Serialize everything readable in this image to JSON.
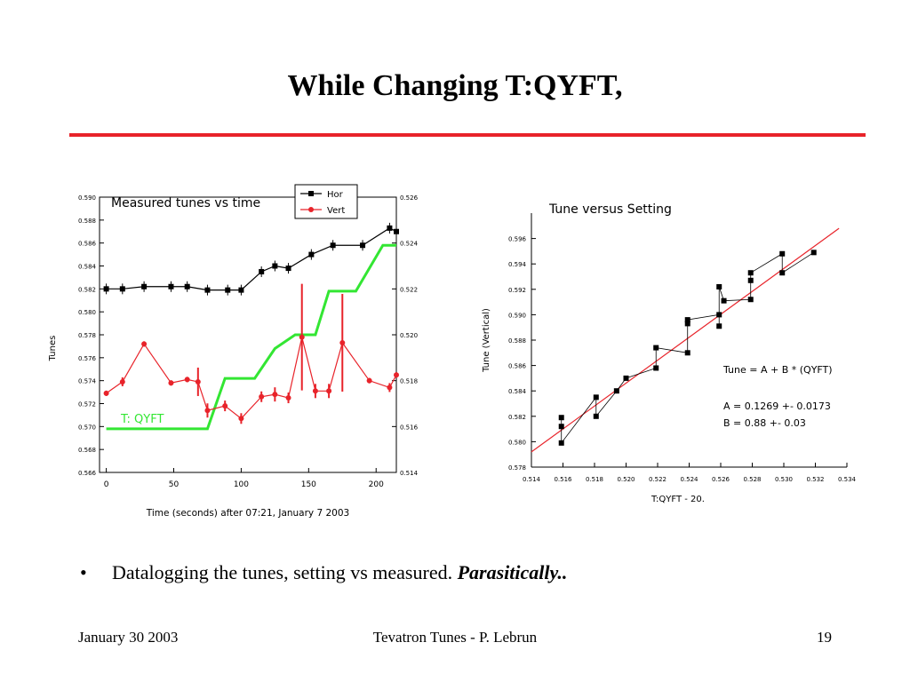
{
  "slide": {
    "title": "While Changing T:QYFT,",
    "accent_color": "#e8232a",
    "bullet": {
      "symbol": "•",
      "text": "Datalogging the tunes, setting vs measured. ",
      "emphasis": "Parasitically.."
    },
    "footer": {
      "date": "January 30  2003",
      "center": "Tevatron Tunes - P. Lebrun",
      "page": "19"
    }
  },
  "chart_data": [
    {
      "type": "line",
      "title": "Measured tunes vs time",
      "xlabel": "Time (seconds) after 07:21, January 7 2003",
      "ylabel": "Tunes",
      "xlim": [
        -5,
        215
      ],
      "ylim": [
        0.566,
        0.59
      ],
      "y2lim": [
        0.514,
        0.526
      ],
      "xticks": [
        0,
        50,
        100,
        150,
        200
      ],
      "yticks": [
        "0.590",
        "0.588",
        "0.586",
        "0.584",
        "0.582",
        "0.580",
        "0.578",
        "0.576",
        "0.574",
        "0.572",
        "0.570",
        "0.568",
        "0.566"
      ],
      "y2ticks": [
        "0.526",
        "0.524",
        "0.522",
        "0.520",
        "0.518",
        "0.516",
        "0.514"
      ],
      "annotation": "T: QYFT",
      "legend_position": "top-right",
      "series": [
        {
          "name": "Hor",
          "color": "#000000",
          "x": [
            0,
            12,
            28,
            48,
            60,
            75,
            90,
            100,
            115,
            125,
            135,
            152,
            168,
            190,
            210,
            215
          ],
          "y": [
            0.582,
            0.582,
            0.5822,
            0.5822,
            0.5822,
            0.5819,
            0.5819,
            0.5819,
            0.5835,
            0.584,
            0.5838,
            0.585,
            0.5858,
            0.5858,
            0.5873,
            0.587
          ]
        },
        {
          "name": "Vert",
          "color": "#e8232a",
          "x": [
            0,
            12,
            28,
            48,
            60,
            68,
            75,
            88,
            100,
            115,
            125,
            135,
            145,
            155,
            165,
            175,
            195,
            210,
            215
          ],
          "y": [
            0.5729,
            0.5739,
            0.5772,
            0.5738,
            0.5741,
            0.5739,
            0.5714,
            0.5718,
            0.5707,
            0.5726,
            0.5728,
            0.5725,
            0.5778,
            0.5731,
            0.5731,
            0.5773,
            0.574,
            0.5734,
            0.5745
          ]
        },
        {
          "name": "T: QYFT",
          "color": "#33e633",
          "axis": "right",
          "x": [
            0,
            75,
            88,
            110,
            125,
            140,
            155,
            165,
            185,
            205,
            215
          ],
          "y": [
            0.5159,
            0.5159,
            0.5181,
            0.5181,
            0.5194,
            0.52,
            0.52,
            0.5219,
            0.5219,
            0.5239,
            0.5239
          ]
        }
      ]
    },
    {
      "type": "scatter",
      "title": "Tune versus Setting",
      "xlabel": "T:QYFT - 20.",
      "ylabel": "Tune (Vertical)",
      "xlim": [
        0.514,
        0.534
      ],
      "ylim": [
        0.578,
        0.598
      ],
      "xticks": [
        "0.514",
        "0.516",
        "0.518",
        "0.520",
        "0.522",
        "0.524",
        "0.526",
        "0.528",
        "0.530",
        "0.532",
        "0.534"
      ],
      "yticks": [
        "0.578",
        "0.580",
        "0.582",
        "0.584",
        "0.586",
        "0.588",
        "0.590",
        "0.592",
        "0.594",
        "0.596"
      ],
      "annotations": [
        "Tune  = A + B * (QYFT)",
        "A = 0.1269 +- 0.0173",
        "B = 0.88 +- 0.03"
      ],
      "series": [
        {
          "name": "data",
          "color": "#000000",
          "x": [
            0.5159,
            0.5159,
            0.5159,
            0.5181,
            0.5181,
            0.5194,
            0.52,
            0.5219,
            0.5219,
            0.5239,
            0.5239,
            0.5239,
            0.5259,
            0.5259,
            0.5259,
            0.5262,
            0.5279,
            0.5279,
            0.5279,
            0.5299,
            0.5299,
            0.5319
          ],
          "y": [
            0.5812,
            0.5819,
            0.5799,
            0.5835,
            0.582,
            0.584,
            0.585,
            0.5858,
            0.5874,
            0.587,
            0.5893,
            0.5896,
            0.59,
            0.5891,
            0.5922,
            0.5911,
            0.5912,
            0.5927,
            0.5933,
            0.5948,
            0.5933,
            0.5949
          ]
        },
        {
          "name": "fit",
          "color": "#e8232a",
          "x": [
            0.514,
            0.5335
          ],
          "y": [
            0.5792,
            0.5968
          ]
        }
      ]
    }
  ]
}
